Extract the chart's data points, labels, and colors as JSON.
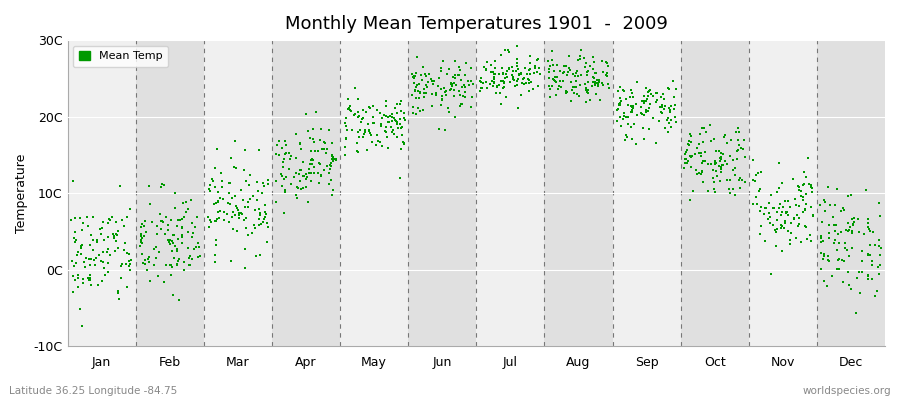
{
  "title": "Monthly Mean Temperatures 1901  -  2009",
  "ylabel": "Temperature",
  "subtitle_left": "Latitude 36.25 Longitude -84.75",
  "subtitle_right": "worldspecies.org",
  "legend_label": "Mean Temp",
  "dot_color": "#009900",
  "background_color": "#ffffff",
  "plot_bg_color_light": "#f0f0f0",
  "plot_bg_color_dark": "#e0e0e0",
  "ylim": [
    -10,
    30
  ],
  "yticks": [
    -10,
    0,
    10,
    20,
    30
  ],
  "ytick_labels": [
    "-10C",
    "0C",
    "10C",
    "20C",
    "30C"
  ],
  "months": [
    "Jan",
    "Feb",
    "Mar",
    "Apr",
    "May",
    "Jun",
    "Jul",
    "Aug",
    "Sep",
    "Oct",
    "Nov",
    "Dec"
  ],
  "month_means": [
    2.0,
    3.5,
    8.5,
    14.0,
    19.0,
    23.5,
    25.5,
    24.8,
    21.0,
    14.5,
    8.0,
    3.5
  ],
  "month_stds": [
    3.5,
    3.5,
    3.0,
    2.5,
    2.0,
    1.8,
    1.5,
    1.5,
    2.0,
    2.5,
    3.0,
    3.5
  ],
  "n_years": 109,
  "seed": 42,
  "dot_size": 3
}
